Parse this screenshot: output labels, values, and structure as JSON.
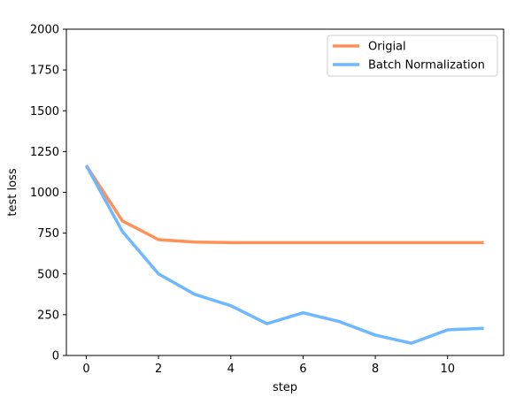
{
  "chart_data": {
    "type": "line",
    "title": "",
    "xlabel": "step",
    "ylabel": "test loss",
    "xlim": [
      -0.55,
      11.55
    ],
    "ylim": [
      0,
      2000
    ],
    "xticks": [
      0,
      2,
      4,
      6,
      8,
      10
    ],
    "yticks": [
      0,
      250,
      500,
      750,
      1000,
      1250,
      1500,
      1750,
      2000
    ],
    "grid": false,
    "legend_position": "top-right",
    "x": [
      0,
      1,
      2,
      3,
      4,
      5,
      6,
      7,
      8,
      9,
      10,
      11
    ],
    "series": [
      {
        "name": "Origial",
        "color": "#ff9156",
        "values": [
          1165,
          825,
          710,
          695,
          692,
          692,
          692,
          692,
          692,
          692,
          692,
          692
        ]
      },
      {
        "name": "Batch Normalization",
        "color": "#6db8ff",
        "values": [
          1165,
          760,
          500,
          375,
          305,
          195,
          262,
          208,
          125,
          75,
          157,
          167
        ]
      }
    ]
  }
}
